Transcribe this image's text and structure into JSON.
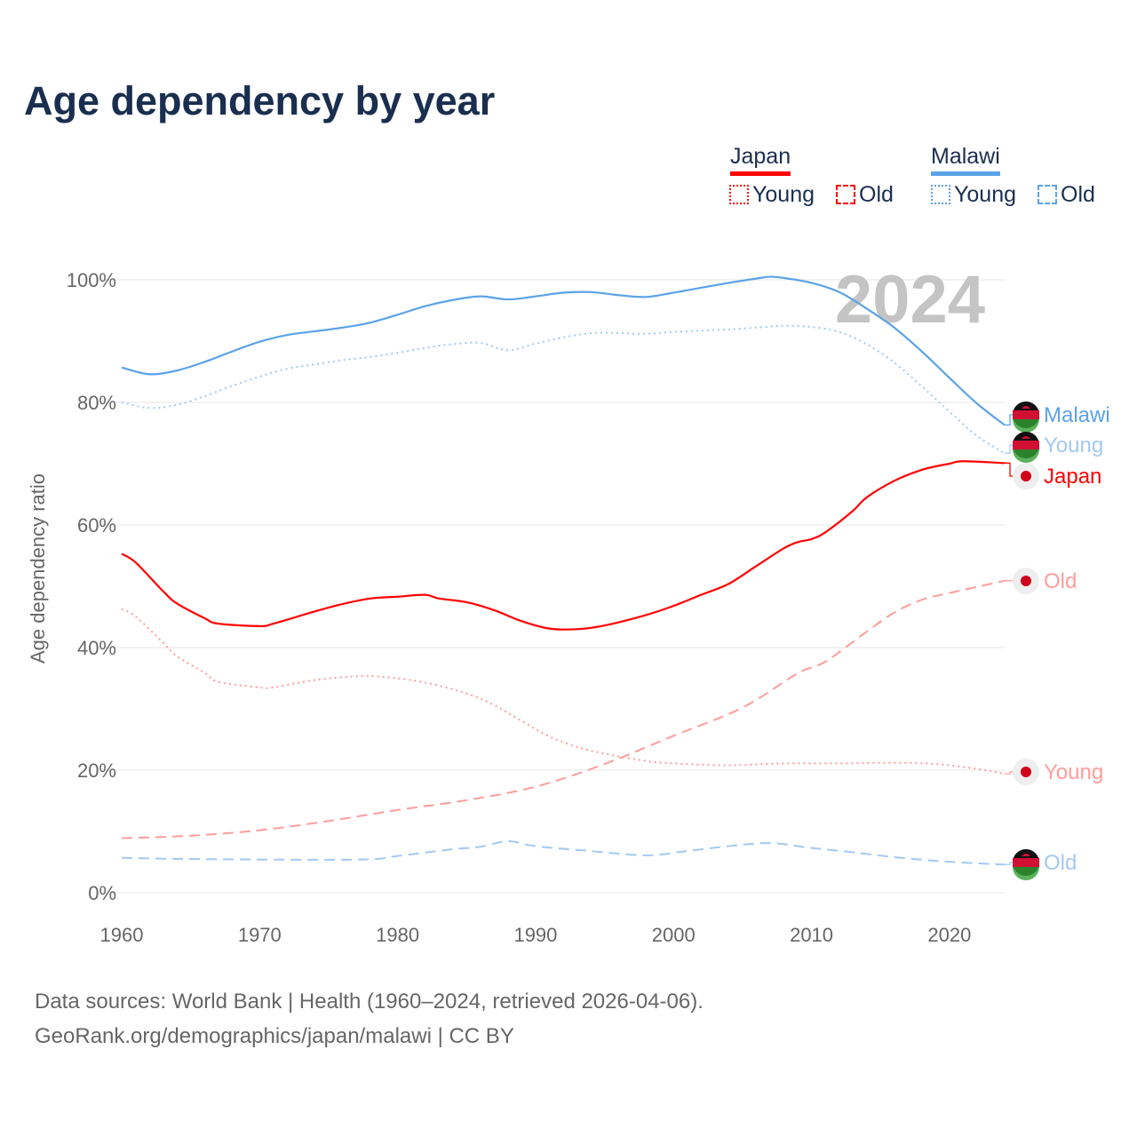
{
  "title": "Age dependency by year",
  "legend": {
    "groups": [
      {
        "name": "Japan",
        "color": "#ff0000",
        "items": [
          {
            "label": "Young",
            "style": "dotted"
          },
          {
            "label": "Old",
            "style": "dashed"
          }
        ]
      },
      {
        "name": "Malawi",
        "color": "#5ba3e8",
        "items": [
          {
            "label": "Young",
            "style": "dotted"
          },
          {
            "label": "Old",
            "style": "dashed"
          }
        ]
      }
    ]
  },
  "year_overlay": "2024",
  "source_lines": [
    "Data sources: World Bank | Health (1960–2024, retrieved 2026-04-06).",
    "GeoRank.org/demographics/japan/malawi | CC BY"
  ],
  "chart_data": {
    "type": "line",
    "title": "Age dependency by year",
    "xlabel": "",
    "ylabel": "Age dependency ratio",
    "xlim": [
      1960,
      2024
    ],
    "ylim": [
      0,
      100
    ],
    "xticks": [
      1960,
      1970,
      1980,
      1990,
      2000,
      2010,
      2020
    ],
    "yticks": [
      {
        "v": 0,
        "label": "0%"
      },
      {
        "v": 20,
        "label": "20%"
      },
      {
        "v": 40,
        "label": "40%"
      },
      {
        "v": 60,
        "label": "60%"
      },
      {
        "v": 80,
        "label": "80%"
      },
      {
        "v": 100,
        "label": "100%"
      }
    ],
    "grid": true,
    "series": [
      {
        "name": "Malawi",
        "end_label": "Malawi",
        "country": "malawi",
        "color": "#5ba3e8",
        "dash": "solid",
        "points": [
          [
            1960,
            85.7
          ],
          [
            1962,
            84.6
          ],
          [
            1964,
            85.2
          ],
          [
            1966,
            86.6
          ],
          [
            1968,
            88.3
          ],
          [
            1970,
            89.9
          ],
          [
            1972,
            91.0
          ],
          [
            1974,
            91.6
          ],
          [
            1976,
            92.2
          ],
          [
            1978,
            93.0
          ],
          [
            1980,
            94.3
          ],
          [
            1982,
            95.7
          ],
          [
            1984,
            96.7
          ],
          [
            1986,
            97.3
          ],
          [
            1988,
            96.8
          ],
          [
            1990,
            97.3
          ],
          [
            1992,
            97.9
          ],
          [
            1994,
            98.0
          ],
          [
            1996,
            97.5
          ],
          [
            1998,
            97.2
          ],
          [
            2000,
            97.9
          ],
          [
            2002,
            98.7
          ],
          [
            2004,
            99.5
          ],
          [
            2006,
            100.2
          ],
          [
            2007,
            100.5
          ],
          [
            2008,
            100.3
          ],
          [
            2010,
            99.5
          ],
          [
            2012,
            98.0
          ],
          [
            2014,
            95.3
          ],
          [
            2016,
            92.2
          ],
          [
            2018,
            88.3
          ],
          [
            2020,
            84.0
          ],
          [
            2022,
            79.8
          ],
          [
            2024,
            76.3
          ]
        ]
      },
      {
        "name": "Malawi Young",
        "end_label": "Young",
        "country": "malawi",
        "color": "#a3c9f0",
        "dash": "dotted",
        "points": [
          [
            1960,
            80.0
          ],
          [
            1962,
            79.1
          ],
          [
            1964,
            79.6
          ],
          [
            1966,
            81.0
          ],
          [
            1968,
            82.7
          ],
          [
            1970,
            84.2
          ],
          [
            1972,
            85.5
          ],
          [
            1974,
            86.2
          ],
          [
            1976,
            86.9
          ],
          [
            1978,
            87.4
          ],
          [
            1980,
            88.1
          ],
          [
            1982,
            88.9
          ],
          [
            1984,
            89.5
          ],
          [
            1986,
            89.7
          ],
          [
            1988,
            88.5
          ],
          [
            1990,
            89.6
          ],
          [
            1992,
            90.6
          ],
          [
            1994,
            91.3
          ],
          [
            1996,
            91.3
          ],
          [
            1998,
            91.2
          ],
          [
            2000,
            91.5
          ],
          [
            2002,
            91.7
          ],
          [
            2004,
            91.9
          ],
          [
            2006,
            92.2
          ],
          [
            2008,
            92.5
          ],
          [
            2010,
            92.3
          ],
          [
            2012,
            91.5
          ],
          [
            2014,
            89.5
          ],
          [
            2016,
            86.5
          ],
          [
            2018,
            82.6
          ],
          [
            2020,
            78.5
          ],
          [
            2022,
            74.5
          ],
          [
            2024,
            71.7
          ]
        ]
      },
      {
        "name": "Japan",
        "end_label": "Japan",
        "country": "japan",
        "color": "#ff0000",
        "dash": "solid",
        "points": [
          [
            1960,
            55.3
          ],
          [
            1961,
            53.9
          ],
          [
            1963,
            49.2
          ],
          [
            1964,
            47.2
          ],
          [
            1966,
            44.8
          ],
          [
            1967,
            43.9
          ],
          [
            1970,
            43.5
          ],
          [
            1971,
            43.9
          ],
          [
            1974,
            45.9
          ],
          [
            1976,
            47.1
          ],
          [
            1978,
            48.0
          ],
          [
            1980,
            48.3
          ],
          [
            1982,
            48.6
          ],
          [
            1983,
            48.0
          ],
          [
            1985,
            47.4
          ],
          [
            1987,
            46.1
          ],
          [
            1989,
            44.3
          ],
          [
            1991,
            43.1
          ],
          [
            1993,
            43.0
          ],
          [
            1995,
            43.6
          ],
          [
            1998,
            45.3
          ],
          [
            2000,
            46.8
          ],
          [
            2002,
            48.6
          ],
          [
            2004,
            50.4
          ],
          [
            2006,
            53.3
          ],
          [
            2008,
            56.2
          ],
          [
            2009,
            57.2
          ],
          [
            2010,
            57.7
          ],
          [
            2011,
            58.8
          ],
          [
            2013,
            62.3
          ],
          [
            2014,
            64.5
          ],
          [
            2016,
            67.2
          ],
          [
            2018,
            69.0
          ],
          [
            2020,
            70.0
          ],
          [
            2021,
            70.4
          ],
          [
            2024,
            70.1
          ]
        ]
      },
      {
        "name": "Japan Old",
        "end_label": "Old",
        "country": "japan",
        "color": "#ff9c9c",
        "dash": "dashed",
        "points": [
          [
            1960,
            8.9
          ],
          [
            1965,
            9.3
          ],
          [
            1970,
            10.2
          ],
          [
            1975,
            11.7
          ],
          [
            1980,
            13.5
          ],
          [
            1985,
            15.1
          ],
          [
            1990,
            17.3
          ],
          [
            1995,
            21.0
          ],
          [
            2000,
            25.6
          ],
          [
            2005,
            30.2
          ],
          [
            2009,
            35.8
          ],
          [
            2011,
            37.7
          ],
          [
            2014,
            42.6
          ],
          [
            2016,
            45.7
          ],
          [
            2018,
            47.8
          ],
          [
            2020,
            48.9
          ],
          [
            2022,
            49.9
          ],
          [
            2024,
            50.9
          ]
        ]
      },
      {
        "name": "Japan Young",
        "end_label": "Young",
        "country": "japan",
        "color": "#ff9c9c",
        "dash": "dotted",
        "points": [
          [
            1960,
            46.3
          ],
          [
            1961,
            45.1
          ],
          [
            1963,
            40.8
          ],
          [
            1964,
            38.6
          ],
          [
            1966,
            35.9
          ],
          [
            1967,
            34.4
          ],
          [
            1970,
            33.5
          ],
          [
            1971,
            33.5
          ],
          [
            1974,
            34.7
          ],
          [
            1977,
            35.3
          ],
          [
            1979,
            35.2
          ],
          [
            1982,
            34.3
          ],
          [
            1985,
            32.5
          ],
          [
            1987,
            30.6
          ],
          [
            1989,
            28.0
          ],
          [
            1991,
            25.5
          ],
          [
            1993,
            23.8
          ],
          [
            1995,
            22.7
          ],
          [
            1998,
            21.5
          ],
          [
            2000,
            21.1
          ],
          [
            2004,
            20.8
          ],
          [
            2008,
            21.1
          ],
          [
            2012,
            21.1
          ],
          [
            2016,
            21.2
          ],
          [
            2019,
            21.0
          ],
          [
            2022,
            20.2
          ],
          [
            2024,
            19.4
          ]
        ]
      },
      {
        "name": "Malawi Old",
        "end_label": "Old",
        "country": "malawi",
        "color": "#a3c9f0",
        "dash": "dashed",
        "points": [
          [
            1960,
            5.7
          ],
          [
            1965,
            5.5
          ],
          [
            1977,
            5.4
          ],
          [
            1980,
            6.0
          ],
          [
            1984,
            7.1
          ],
          [
            1986,
            7.5
          ],
          [
            1988,
            8.4
          ],
          [
            1990,
            7.6
          ],
          [
            1994,
            6.8
          ],
          [
            1998,
            6.1
          ],
          [
            2001,
            6.8
          ],
          [
            2004,
            7.6
          ],
          [
            2007,
            8.1
          ],
          [
            2010,
            7.3
          ],
          [
            2013,
            6.6
          ],
          [
            2016,
            5.8
          ],
          [
            2019,
            5.2
          ],
          [
            2022,
            4.8
          ],
          [
            2024,
            4.6
          ]
        ]
      }
    ]
  }
}
